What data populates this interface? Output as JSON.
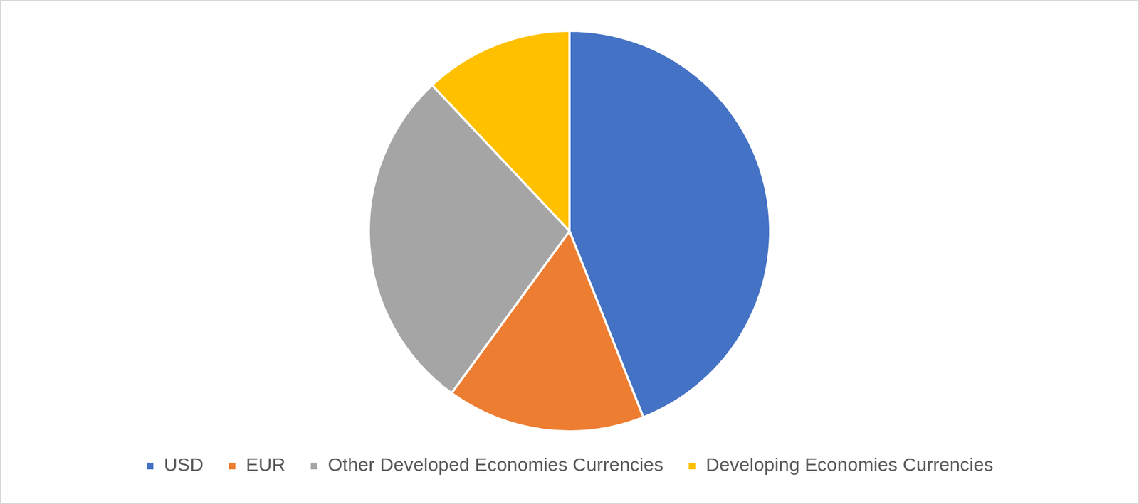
{
  "chart_data": {
    "type": "pie",
    "categories": [
      "USD",
      "EUR",
      "Other Developed Economies Currencies",
      "Developing Economies Currencies"
    ],
    "values": [
      44,
      16,
      28,
      12
    ],
    "colors": [
      "#4472c4",
      "#ed7d31",
      "#a5a5a5",
      "#ffc000"
    ],
    "legend": "bottom"
  }
}
